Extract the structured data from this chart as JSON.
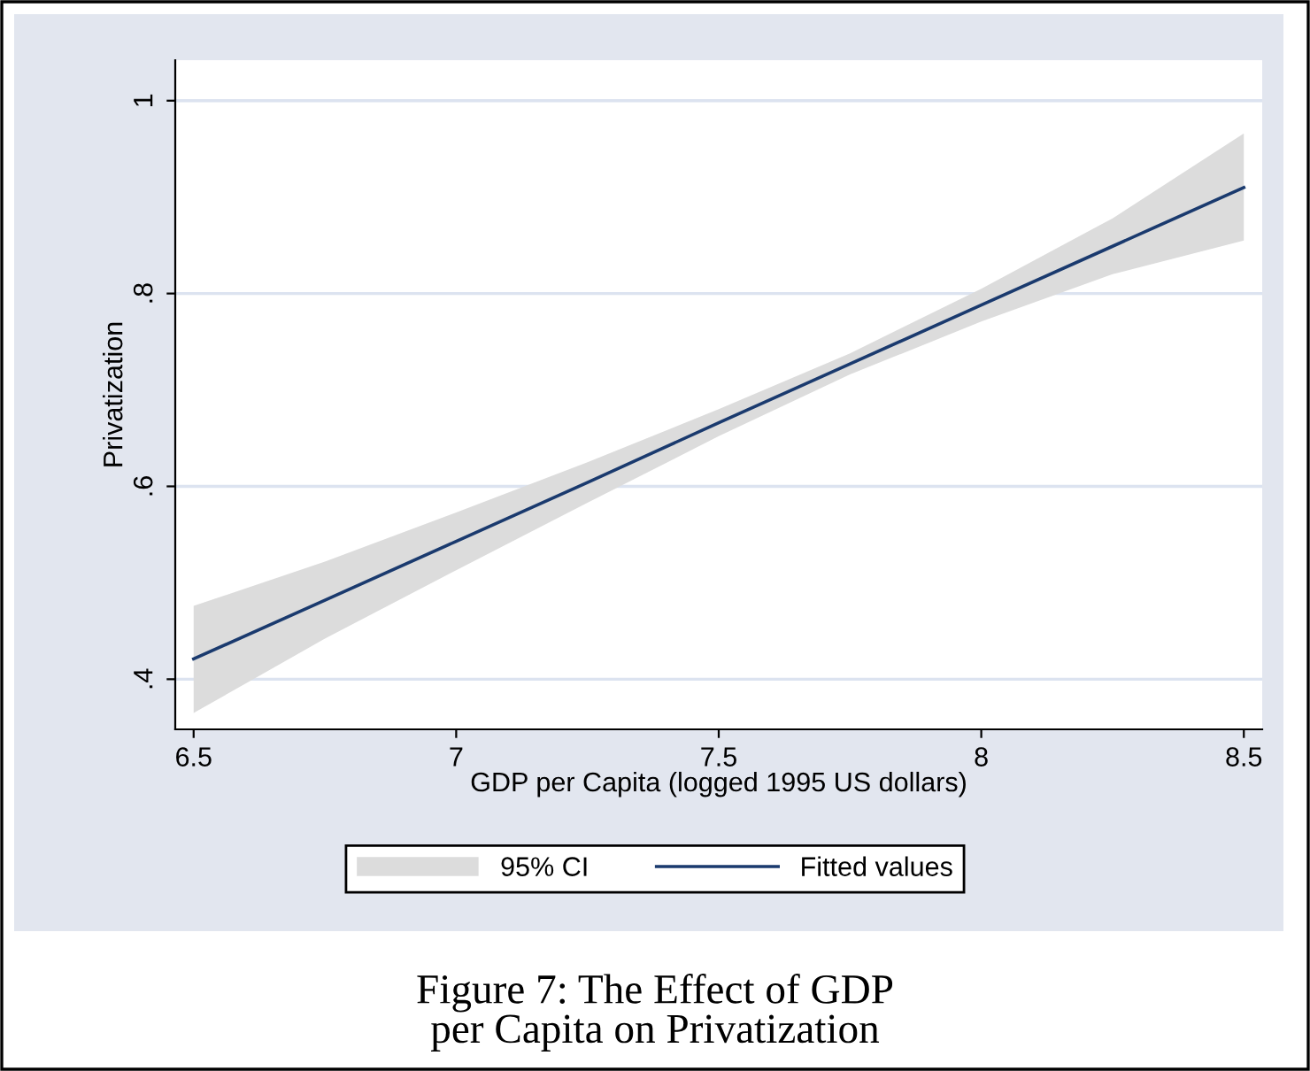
{
  "chart_data": {
    "type": "line",
    "title": "Figure 7: The Effect of GDP\nper Capita on Privatization",
    "xlabel": "GDP per Capita (logged 1995 US dollars)",
    "ylabel": "Privatization",
    "x": [
      6.5,
      6.75,
      7,
      7.25,
      7.5,
      7.75,
      8,
      8.25,
      8.5
    ],
    "series": [
      {
        "name": "Fitted values",
        "color": "#1a3a6e",
        "values": [
          0.421,
          0.482,
          0.543,
          0.604,
          0.666,
          0.727,
          0.788,
          0.849,
          0.91
        ],
        "lower": [
          0.365,
          0.442,
          0.513,
          0.583,
          0.652,
          0.716,
          0.771,
          0.82,
          0.855
        ],
        "upper": [
          0.476,
          0.522,
          0.573,
          0.625,
          0.68,
          0.738,
          0.805,
          0.878,
          0.966
        ]
      }
    ],
    "xlim": [
      6.465,
      8.535
    ],
    "ylim": [
      0.348,
      1.042
    ],
    "xticks": [
      6.5,
      7,
      7.5,
      8,
      8.5
    ],
    "yticks": [
      {
        "value": 0.4,
        "label": ".4"
      },
      {
        "value": 0.6,
        "label": ".6"
      },
      {
        "value": 0.8,
        "label": ".8"
      },
      {
        "value": 1,
        "label": "1"
      }
    ],
    "annotations": [
      "95% CI"
    ],
    "grid": "y",
    "legend": "bottom",
    "marker": "none",
    "line_style": "solid"
  }
}
